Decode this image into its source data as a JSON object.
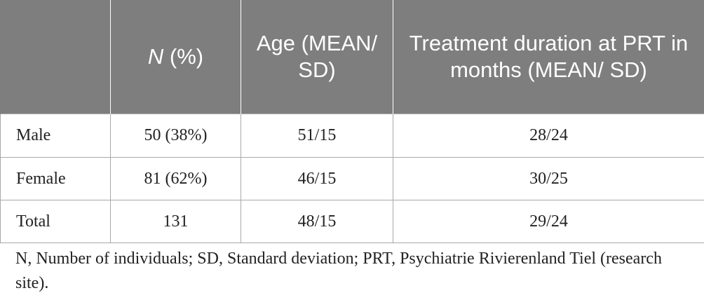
{
  "table": {
    "headers": {
      "col0": "",
      "col1_italic": "N",
      "col1_rest": " (%)",
      "col2": "Age (MEAN/ SD)",
      "col3": "Treatment duration at PRT in months (MEAN/ SD)"
    },
    "rows": [
      {
        "label": "Male",
        "n": "50 (38%)",
        "age": "51/15",
        "duration": "28/24"
      },
      {
        "label": "Female",
        "n": "81 (62%)",
        "age": "46/15",
        "duration": "30/25"
      },
      {
        "label": "Total",
        "n": "131",
        "age": "48/15",
        "duration": "29/24"
      }
    ]
  },
  "footnote": "N, Number of individuals; SD, Standard deviation; PRT, Psychiatrie Rivierenland Tiel (research site)."
}
